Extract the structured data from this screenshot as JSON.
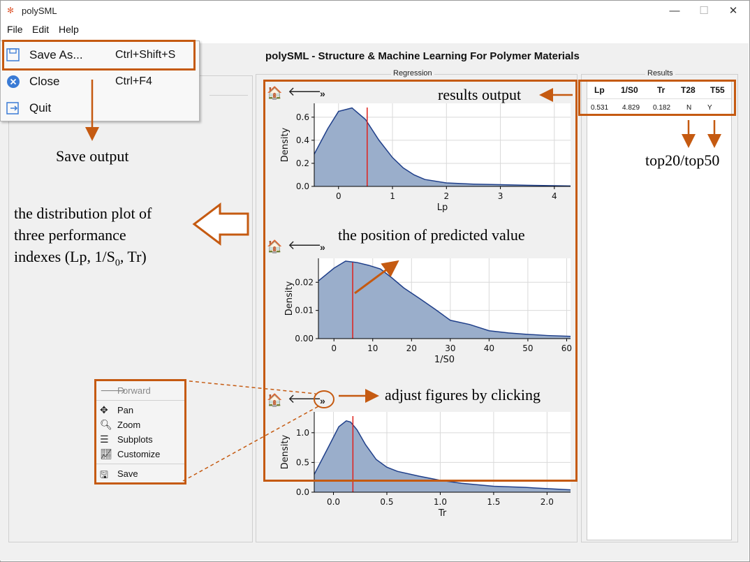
{
  "window": {
    "title": "polySML",
    "app_icon": "polysml-logo-icon",
    "controls": {
      "minimize": "—",
      "maximize": "☐",
      "close": "✕"
    }
  },
  "menubar": {
    "items": [
      "File",
      "Edit",
      "Help"
    ]
  },
  "app_title": "polySML - Structure & Machine Learning For Polymer Materials",
  "file_menu": {
    "items": [
      {
        "label": "Save As...",
        "shortcut": "Ctrl+Shift+S",
        "icon": "save-as-icon"
      },
      {
        "label": "Close",
        "shortcut": "Ctrl+F4",
        "icon": "close-circle-icon"
      },
      {
        "label": "Quit",
        "shortcut": "",
        "icon": "quit-icon"
      }
    ]
  },
  "panels": {
    "regression_label": "Regression",
    "results_label": "Results"
  },
  "nav_toolbar": {
    "home": "🏠",
    "back": "🡐",
    "more": "»"
  },
  "results_table": {
    "headers": [
      "Lp",
      "1/S0",
      "Tr",
      "T28",
      "T55"
    ],
    "rows": [
      [
        "0.531",
        "4.829",
        "0.182",
        "N",
        "Y"
      ]
    ]
  },
  "context_menu": {
    "items": [
      {
        "label": "Forward",
        "icon": "forward-arrow-icon",
        "disabled": true
      },
      {
        "label": "Pan",
        "icon": "pan-icon",
        "disabled": false
      },
      {
        "label": "Zoom",
        "icon": "zoom-icon",
        "disabled": false
      },
      {
        "label": "Subplots",
        "icon": "subplots-icon",
        "disabled": false
      },
      {
        "label": "Customize",
        "icon": "customize-icon",
        "disabled": false
      },
      {
        "label": "Save",
        "icon": "save-icon",
        "disabled": false
      }
    ]
  },
  "annotations": {
    "save_output": "Save output",
    "results_output": "results output",
    "top20_top50": "top20/top50",
    "distribution_line1": "the distribution plot of",
    "distribution_line2": "three performance",
    "distribution_line3_prefix": "indexes (Lp, 1/S",
    "distribution_line3_sub": "0",
    "distribution_line3_suffix": ", Tr)",
    "predicted_position": "the position of predicted value",
    "adjust_figures": "adjust figures by clicking"
  },
  "colors": {
    "accent": "#c55a11",
    "fill": "#9aaecb",
    "curve": "#1f3f8a",
    "marker": "#e0201b"
  },
  "chart_data": [
    {
      "type": "area",
      "xlabel": "Lp",
      "ylabel": "Density",
      "xlim": [
        -0.45,
        4.3
      ],
      "ylim": [
        0,
        0.72
      ],
      "xticks": [
        0,
        1,
        2,
        3,
        4
      ],
      "yticks": [
        0.0,
        0.2,
        0.4,
        0.6
      ],
      "ytick_labels": [
        "0.0",
        "0.2",
        "0.4",
        "0.6"
      ],
      "grid": true,
      "x": [
        -0.45,
        -0.2,
        0.0,
        0.25,
        0.5,
        0.75,
        1.0,
        1.2,
        1.4,
        1.6,
        2.0,
        2.5,
        3.0,
        3.5,
        4.0,
        4.3
      ],
      "y": [
        0.28,
        0.5,
        0.65,
        0.68,
        0.58,
        0.4,
        0.25,
        0.16,
        0.1,
        0.06,
        0.03,
        0.02,
        0.015,
        0.01,
        0.006,
        0.004
      ],
      "predicted": 0.531
    },
    {
      "type": "area",
      "xlabel": "1/S0",
      "ylabel": "Density",
      "xlim": [
        -4,
        61
      ],
      "ylim": [
        0,
        0.0285
      ],
      "xticks": [
        0,
        10,
        20,
        30,
        40,
        50,
        60
      ],
      "yticks": [
        0.0,
        0.01,
        0.02
      ],
      "ytick_labels": [
        "0.00",
        "0.01",
        "0.02"
      ],
      "grid": true,
      "x": [
        -4,
        0,
        3,
        6,
        9,
        12,
        15,
        18,
        22,
        26,
        30,
        35,
        40,
        45,
        50,
        55,
        61
      ],
      "y": [
        0.0205,
        0.025,
        0.0275,
        0.027,
        0.026,
        0.0247,
        0.0215,
        0.018,
        0.0143,
        0.0105,
        0.0065,
        0.005,
        0.0028,
        0.002,
        0.0015,
        0.0011,
        0.0008
      ],
      "predicted": 4.829
    },
    {
      "type": "area",
      "xlabel": "Tr",
      "ylabel": "Density",
      "xlim": [
        -0.18,
        2.22
      ],
      "ylim": [
        0,
        1.35
      ],
      "xticks": [
        0.0,
        0.5,
        1.0,
        1.5,
        2.0
      ],
      "xtick_labels": [
        "0.0",
        "0.5",
        "1.0",
        "1.5",
        "2.0"
      ],
      "yticks": [
        0.0,
        0.5,
        1.0
      ],
      "ytick_labels": [
        "0.0",
        "0.5",
        "1.0"
      ],
      "grid": true,
      "x": [
        -0.18,
        -0.05,
        0.05,
        0.12,
        0.16,
        0.22,
        0.3,
        0.4,
        0.5,
        0.6,
        0.8,
        1.0,
        1.2,
        1.5,
        1.8,
        2.0,
        2.22
      ],
      "y": [
        0.3,
        0.75,
        1.1,
        1.2,
        1.18,
        1.05,
        0.8,
        0.55,
        0.42,
        0.35,
        0.27,
        0.2,
        0.15,
        0.1,
        0.08,
        0.06,
        0.04
      ],
      "predicted": 0.182
    }
  ]
}
